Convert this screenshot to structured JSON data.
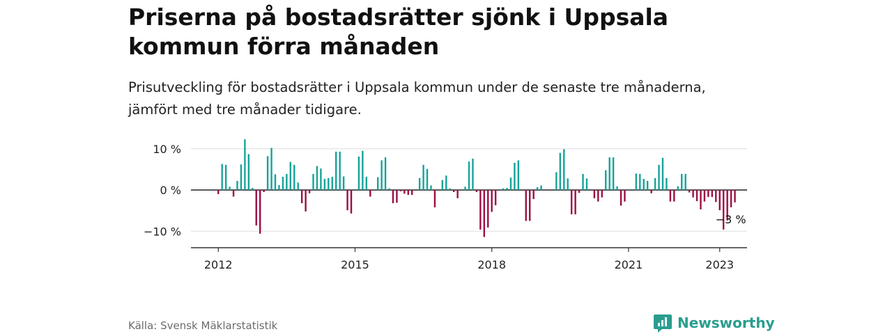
{
  "title": "Priserna på bostadsrätter sjönk i Uppsala kommun förra månaden",
  "subtitle": "Prisutveckling för bostadsrätter i Uppsala kommun under de senaste tre månaderna, jämfört med tre månader tidigare.",
  "source": "Källa: Svensk Mäklarstatistik",
  "brand": {
    "name": "Newsworthy",
    "icon": "newsworthy-logo-icon"
  },
  "colors": {
    "positive": "#17a398",
    "negative": "#9b0f45",
    "grid": "#dddddd",
    "axis": "#333333",
    "brand": "#2a9d8f"
  },
  "chart_data": {
    "type": "bar",
    "title": "",
    "xlabel": "",
    "ylabel": "",
    "y_ticks": [
      {
        "value": 10,
        "label": "10 %"
      },
      {
        "value": 0,
        "label": "0 %"
      },
      {
        "value": -10,
        "label": "−10 %"
      }
    ],
    "x_ticks": [
      {
        "value": 2012,
        "label": "2012"
      },
      {
        "value": 2015,
        "label": "2015"
      },
      {
        "value": 2018,
        "label": "2018"
      },
      {
        "value": 2021,
        "label": "2021"
      },
      {
        "value": 2023,
        "label": "2023"
      }
    ],
    "xlim": [
      2011.4,
      2023.6
    ],
    "ylim": [
      -14,
      13
    ],
    "grid": true,
    "start": "2012-01",
    "frequency": "monthly",
    "values": [
      -1,
      6.3,
      6.1,
      0.8,
      -1.6,
      2.2,
      6.2,
      12.3,
      8.7,
      0.5,
      -8.6,
      -10.6,
      -0.5,
      8.2,
      10.2,
      3.8,
      1.2,
      3.2,
      3.9,
      6.8,
      6.1,
      1.8,
      -3.2,
      -5.2,
      -0.8,
      3.9,
      5.8,
      5.2,
      2.7,
      2.9,
      3.2,
      9.3,
      9.3,
      3.3,
      -4.9,
      -5.7,
      0,
      8.1,
      9.5,
      3.2,
      -1.6,
      0,
      3.1,
      7.2,
      7.9,
      0.4,
      -3.2,
      -3.1,
      -0.3,
      -0.9,
      -1.2,
      -1.2,
      0,
      2.9,
      6.1,
      5.1,
      1.1,
      -4.2,
      0,
      2.4,
      3.5,
      0.4,
      -0.5,
      -2,
      0,
      0.8,
      6.9,
      7.6,
      -0.5,
      -9.6,
      -11.4,
      -9.1,
      -5.3,
      -3.7,
      0,
      0.4,
      0.5,
      3,
      6.6,
      7.2,
      0,
      -7.5,
      -7.5,
      -2.2,
      0.7,
      1.1,
      0,
      0,
      0,
      4.3,
      9,
      9.9,
      2.8,
      -5.9,
      -5.9,
      -0.7,
      3.9,
      2.8,
      0,
      -2,
      -2.8,
      -1.8,
      4.8,
      7.9,
      7.9,
      0.9,
      -3.8,
      -2.8,
      0,
      0,
      4,
      3.9,
      2.7,
      2.2,
      -0.8,
      2.9,
      6.1,
      7.8,
      2.9,
      -2.8,
      -2.8,
      0.9,
      3.9,
      3.9,
      -0.6,
      -1.8,
      -2.7,
      -4.7,
      -2.8,
      -1.7,
      -1.7,
      -2.9,
      -4.9,
      -9.6,
      -7.4,
      -4.2,
      -3
    ],
    "annotations": [
      {
        "x": "2023-01",
        "text": "−3 %"
      }
    ]
  }
}
